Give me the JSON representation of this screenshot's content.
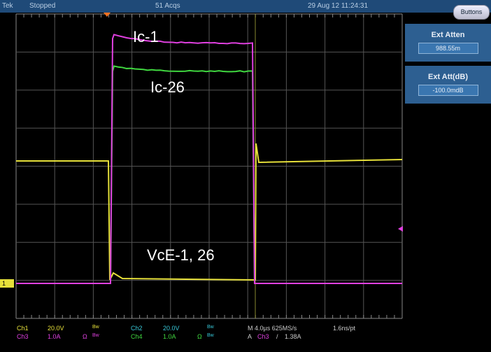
{
  "header": {
    "brand": "Tek",
    "status": "Stopped",
    "acqs": "51 Acqs",
    "datetime": "29 Aug 12 11:24:31",
    "buttons_label": "Buttons"
  },
  "side": {
    "ext_atten": {
      "title": "Ext Atten",
      "value": "988.55m"
    },
    "ext_att_db": {
      "title": "Ext Att(dB)",
      "value": "-100.0mdB"
    }
  },
  "annotations": {
    "ic1": "Ic-1",
    "ic26": "Ic-26",
    "vce": "VcE-1, 26"
  },
  "markers": {
    "ch1": "1"
  },
  "readout": {
    "ch1": {
      "name": "Ch1",
      "scale": "20.0V",
      "bw": "Bw"
    },
    "ch2": {
      "name": "Ch2",
      "scale": "20.0V",
      "bw": "Bw"
    },
    "ch3": {
      "name": "Ch3",
      "scale": "1.0A",
      "ohm": "Ω",
      "bw": "Bw"
    },
    "ch4": {
      "name": "Ch4",
      "scale": "1.0A",
      "ohm": "Ω",
      "bw": "Bw"
    },
    "timebase": "M 4.0µs 625MS/s",
    "resolution": "1.6ns/pt",
    "trigger_prefix": "A",
    "trigger_source": "Ch3",
    "trigger_slope": "/",
    "trigger_level": "1.38A"
  },
  "colors": {
    "ch1": "#e6e03a",
    "ch2": "#38c8d8",
    "ch3": "#e040e0",
    "ch4": "#40d840",
    "header": "#1f4a78"
  }
}
